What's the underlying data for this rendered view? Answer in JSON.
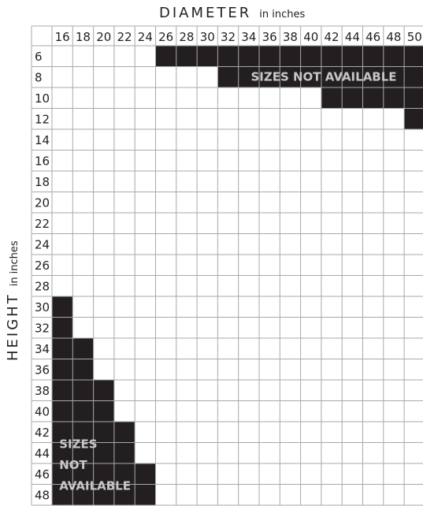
{
  "diameter_axis": {
    "title": "DIAMETER",
    "unit": "in inches",
    "values": [
      "16",
      "18",
      "20",
      "22",
      "24",
      "26",
      "28",
      "30",
      "32",
      "34",
      "36",
      "38",
      "40",
      "42",
      "44",
      "46",
      "48",
      "50"
    ]
  },
  "height_axis": {
    "title": "HEIGHT",
    "unit": "in inches",
    "values": [
      "6",
      "8",
      "10",
      "12",
      "14",
      "16",
      "18",
      "20",
      "22",
      "24",
      "26",
      "28",
      "30",
      "32",
      "34",
      "36",
      "38",
      "40",
      "42",
      "44",
      "46",
      "48"
    ]
  },
  "unavailable_regions": [
    {
      "label": "SIZES NOT AVAILABLE",
      "cells": {
        "6": [
          "26",
          "28",
          "30",
          "32",
          "34",
          "36",
          "38",
          "40",
          "42",
          "44",
          "46",
          "48",
          "50"
        ],
        "8": [
          "32",
          "34",
          "36",
          "38",
          "40",
          "42",
          "44",
          "46",
          "48",
          "50"
        ],
        "10": [
          "42",
          "44",
          "46",
          "48",
          "50"
        ],
        "12": [
          "50"
        ]
      }
    },
    {
      "label": "SIZES NOT AVAILABLE",
      "lines": [
        "SIZES",
        "NOT",
        "AVAILABLE"
      ],
      "cells": {
        "30": [
          "16"
        ],
        "32": [
          "16"
        ],
        "34": [
          "16",
          "18"
        ],
        "36": [
          "16",
          "18"
        ],
        "38": [
          "16",
          "18",
          "20"
        ],
        "40": [
          "16",
          "18",
          "20"
        ],
        "42": [
          "16",
          "18",
          "20",
          "22"
        ],
        "44": [
          "16",
          "18",
          "20",
          "22"
        ],
        "46": [
          "16",
          "18",
          "20",
          "22",
          "24"
        ],
        "48": [
          "16",
          "18",
          "20",
          "22",
          "24"
        ]
      }
    }
  ],
  "colors": {
    "unavailable": "#231f20",
    "grid": "#a7a9ac",
    "label_text": "#231f20",
    "overlay_text": "#c8c8c8"
  }
}
